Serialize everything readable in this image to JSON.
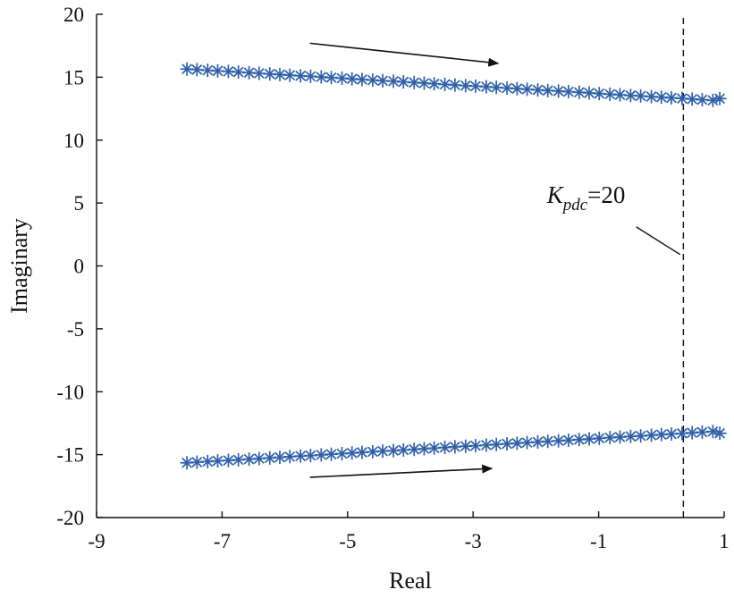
{
  "chart_data": {
    "type": "scatter",
    "xlabel": "Real",
    "ylabel": "Imaginary",
    "xlim": [
      -9,
      1
    ],
    "ylim": [
      -20,
      20
    ],
    "x_ticks": [
      -9,
      -7,
      -5,
      -3,
      -1,
      1
    ],
    "y_ticks": [
      20,
      15,
      10,
      5,
      0,
      -5,
      -10,
      -15,
      -20
    ],
    "grid": false,
    "marker": "asterisk",
    "marker_color": "#2E5FA8",
    "series": [
      {
        "x": [
          -7.56,
          -7.4,
          -7.23,
          -7.07,
          -6.9,
          -6.74,
          -6.57,
          -6.41,
          -6.24,
          -6.08,
          -5.92,
          -5.75,
          -5.59,
          -5.42,
          -5.26,
          -5.09,
          -4.93,
          -4.77,
          -4.6,
          -4.44,
          -4.27,
          -4.11,
          -3.94,
          -3.78,
          -3.62,
          -3.45,
          -3.29,
          -3.12,
          -2.96,
          -2.79,
          -2.63,
          -2.46,
          -2.3,
          -2.14,
          -1.97,
          -1.81,
          -1.64,
          -1.48,
          -1.31,
          -1.15,
          -0.99,
          -0.82,
          -0.66,
          -0.49,
          -0.33,
          -0.16,
          0.0,
          0.16,
          0.33,
          0.49,
          0.65,
          0.82,
          0.93
        ],
        "y": [
          15.65,
          15.6,
          15.55,
          15.5,
          15.46,
          15.41,
          15.36,
          15.31,
          15.26,
          15.21,
          15.16,
          15.11,
          15.07,
          15.02,
          14.97,
          14.92,
          14.87,
          14.82,
          14.77,
          14.72,
          14.68,
          14.63,
          14.58,
          14.53,
          14.48,
          14.43,
          14.38,
          14.33,
          14.29,
          14.24,
          14.19,
          14.14,
          14.09,
          14.04,
          13.99,
          13.94,
          13.9,
          13.85,
          13.8,
          13.75,
          13.7,
          13.65,
          13.6,
          13.55,
          13.51,
          13.46,
          13.41,
          13.36,
          13.31,
          13.26,
          13.21,
          13.16,
          13.3
        ]
      },
      {
        "x": [
          -7.56,
          -7.4,
          -7.23,
          -7.07,
          -6.9,
          -6.74,
          -6.57,
          -6.41,
          -6.24,
          -6.08,
          -5.92,
          -5.75,
          -5.59,
          -5.42,
          -5.26,
          -5.09,
          -4.93,
          -4.77,
          -4.6,
          -4.44,
          -4.27,
          -4.11,
          -3.94,
          -3.78,
          -3.62,
          -3.45,
          -3.29,
          -3.12,
          -2.96,
          -2.79,
          -2.63,
          -2.46,
          -2.3,
          -2.14,
          -1.97,
          -1.81,
          -1.64,
          -1.48,
          -1.31,
          -1.15,
          -0.99,
          -0.82,
          -0.66,
          -0.49,
          -0.33,
          -0.16,
          0.0,
          0.16,
          0.33,
          0.49,
          0.65,
          0.82,
          0.93
        ],
        "y": [
          -15.65,
          -15.6,
          -15.55,
          -15.5,
          -15.46,
          -15.41,
          -15.36,
          -15.31,
          -15.26,
          -15.21,
          -15.16,
          -15.11,
          -15.07,
          -15.02,
          -14.97,
          -14.92,
          -14.87,
          -14.82,
          -14.77,
          -14.72,
          -14.68,
          -14.63,
          -14.58,
          -14.53,
          -14.48,
          -14.43,
          -14.38,
          -14.33,
          -14.29,
          -14.24,
          -14.19,
          -14.14,
          -14.09,
          -14.04,
          -13.99,
          -13.94,
          -13.9,
          -13.85,
          -13.8,
          -13.75,
          -13.7,
          -13.65,
          -13.6,
          -13.55,
          -13.51,
          -13.46,
          -13.41,
          -13.36,
          -13.31,
          -13.26,
          -13.21,
          -13.16,
          -13.3
        ]
      }
    ],
    "reference_line": {
      "orientation": "vertical",
      "x": 0.35,
      "style": "dashed"
    },
    "annotation": {
      "k": "K",
      "sub": "pdc",
      "value": "=20",
      "text_at": [
        -1.2,
        5
      ],
      "leader_from": [
        -0.4,
        3.1
      ],
      "leader_to": [
        0.3,
        0.9
      ]
    },
    "arrows": [
      {
        "from": [
          -5.6,
          17.7
        ],
        "to": [
          -2.6,
          16.1
        ]
      },
      {
        "from": [
          -5.6,
          -16.8
        ],
        "to": [
          -2.7,
          -16.1
        ]
      }
    ]
  }
}
